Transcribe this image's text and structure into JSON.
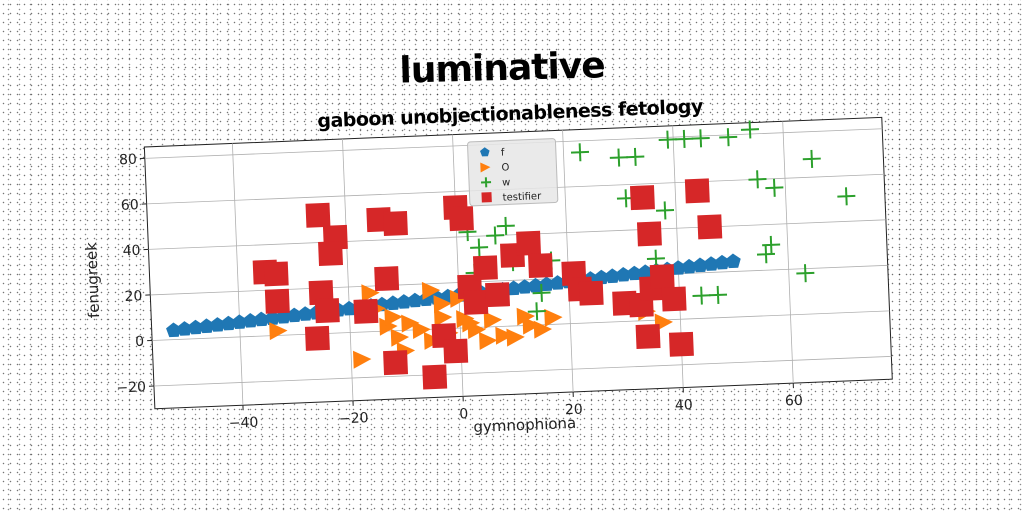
{
  "chart_data": {
    "type": "scatter",
    "title": "luminative",
    "subtitle": "gaboon unobjectionableness fetology",
    "xlabel": "gymnophiona",
    "ylabel": "fenugreek",
    "xlim": [
      -56,
      78
    ],
    "ylim": [
      -30,
      85
    ],
    "xticks": [
      -40,
      -20,
      0,
      20,
      40,
      60
    ],
    "yticks": [
      -20,
      0,
      20,
      40,
      60,
      80
    ],
    "xtick_labels": [
      "−40",
      "−20",
      "0",
      "20",
      "40",
      "60"
    ],
    "ytick_labels": [
      "−20",
      "0",
      "20",
      "40",
      "60",
      "80"
    ],
    "grid": true,
    "legend_position": "top-center",
    "series": [
      {
        "name": "f",
        "marker": "pentagon",
        "color": "#1f77b4",
        "points": [
          [
            -52,
            4
          ],
          [
            -50,
            4.4
          ],
          [
            -48,
            4.8
          ],
          [
            -46,
            5.2
          ],
          [
            -44,
            5.6
          ],
          [
            -42,
            6
          ],
          [
            -40,
            6.4
          ],
          [
            -38,
            6.8
          ],
          [
            -36,
            7.2
          ],
          [
            -34,
            7.6
          ],
          [
            -32,
            8
          ],
          [
            -30,
            8.4
          ],
          [
            -28,
            8.8
          ],
          [
            -26,
            9.2
          ],
          [
            -24,
            9.6
          ],
          [
            -22,
            10
          ],
          [
            -20,
            10.4
          ],
          [
            -18,
            10.8
          ],
          [
            -16,
            11.2
          ],
          [
            -14,
            11.6
          ],
          [
            -12,
            12
          ],
          [
            -10,
            12.4
          ],
          [
            -8,
            12.8
          ],
          [
            -6,
            13.2
          ],
          [
            -4,
            13.6
          ],
          [
            -2,
            14
          ],
          [
            0,
            14.4
          ],
          [
            2,
            14.8
          ],
          [
            4,
            15.2
          ],
          [
            6,
            15.6
          ],
          [
            8,
            16
          ],
          [
            10,
            16.4
          ],
          [
            12,
            16.8
          ],
          [
            14,
            17.2
          ],
          [
            16,
            17.6
          ],
          [
            18,
            18
          ],
          [
            20,
            18.4
          ],
          [
            22,
            18.8
          ],
          [
            24,
            19.2
          ],
          [
            26,
            19.6
          ],
          [
            28,
            20
          ],
          [
            30,
            20.4
          ],
          [
            32,
            20.8
          ],
          [
            34,
            21.2
          ],
          [
            36,
            21.6
          ],
          [
            38,
            22
          ],
          [
            40,
            22.4
          ],
          [
            42,
            22.8
          ],
          [
            44,
            23.2
          ],
          [
            46,
            23.6
          ],
          [
            48,
            24
          ],
          [
            50,
            24.4
          ]
        ]
      },
      {
        "name": "O",
        "marker": "triangle-right",
        "color": "#ff7f0e",
        "points": [
          [
            -33,
            2
          ],
          [
            -16,
            17
          ],
          [
            -13,
            2
          ],
          [
            -11,
            -3
          ],
          [
            -9,
            3
          ],
          [
            -7,
            0
          ],
          [
            -5,
            -5
          ],
          [
            -3,
            5
          ],
          [
            -2,
            -2
          ],
          [
            1,
            4
          ],
          [
            3,
            -1
          ],
          [
            5,
            -6
          ],
          [
            -15,
            10
          ],
          [
            -18,
            -12
          ],
          [
            -5,
            17
          ],
          [
            13,
            0
          ],
          [
            15,
            -2
          ],
          [
            17,
            3
          ],
          [
            6,
            3
          ],
          [
            8,
            -4
          ],
          [
            -10,
            -9
          ],
          [
            -1,
            -10
          ],
          [
            0,
            13
          ],
          [
            34,
            4
          ],
          [
            37,
            -1
          ],
          [
            10,
            -5
          ],
          [
            -3,
            11
          ],
          [
            12,
            4
          ],
          [
            2,
            2
          ],
          [
            -12,
            6
          ]
        ]
      },
      {
        "name": "w",
        "marker": "plus",
        "color": "#2ca02c",
        "points": [
          [
            23,
            75
          ],
          [
            30,
            72
          ],
          [
            33,
            72
          ],
          [
            39,
            79
          ],
          [
            42,
            79
          ],
          [
            45,
            79
          ],
          [
            50,
            79
          ],
          [
            54,
            82
          ],
          [
            55,
            60
          ],
          [
            58,
            56
          ],
          [
            65,
            68
          ],
          [
            71,
            51
          ],
          [
            38,
            48
          ],
          [
            57,
            31
          ],
          [
            56,
            27
          ],
          [
            63,
            18
          ],
          [
            44,
            10
          ],
          [
            47,
            10
          ],
          [
            36,
            27
          ],
          [
            13,
            36
          ],
          [
            7,
            40
          ],
          [
            2,
            42
          ],
          [
            4,
            35
          ],
          [
            9,
            44
          ],
          [
            15,
            14
          ],
          [
            14,
            6
          ],
          [
            3,
            24
          ],
          [
            10,
            28
          ],
          [
            17,
            28
          ],
          [
            31,
            54
          ]
        ]
      },
      {
        "name": "testifier",
        "marker": "square",
        "color": "#d62728",
        "points": [
          [
            -35,
            28
          ],
          [
            -33,
            15
          ],
          [
            -25,
            52
          ],
          [
            -22,
            42
          ],
          [
            -23,
            35
          ],
          [
            -25,
            18
          ],
          [
            -24,
            10
          ],
          [
            -26,
            -2
          ],
          [
            -17,
            9
          ],
          [
            -14,
            49
          ],
          [
            -11,
            47
          ],
          [
            -13,
            23
          ],
          [
            -12,
            -14
          ],
          [
            -5,
            -21
          ],
          [
            -3,
            -3
          ],
          [
            -1,
            -10
          ],
          [
            0,
            53
          ],
          [
            1,
            48
          ],
          [
            2,
            18
          ],
          [
            3,
            11
          ],
          [
            5,
            26
          ],
          [
            7,
            14
          ],
          [
            10,
            31
          ],
          [
            13,
            36
          ],
          [
            15,
            26
          ],
          [
            21,
            22
          ],
          [
            22,
            15
          ],
          [
            24,
            13
          ],
          [
            30,
            8
          ],
          [
            33,
            7
          ],
          [
            34,
            -7
          ],
          [
            35,
            14
          ],
          [
            37,
            19
          ],
          [
            39,
            9
          ],
          [
            40,
            -11
          ],
          [
            44,
            56
          ],
          [
            46,
            40
          ],
          [
            35,
            38
          ],
          [
            34,
            54
          ],
          [
            -33,
            27
          ]
        ]
      }
    ]
  }
}
